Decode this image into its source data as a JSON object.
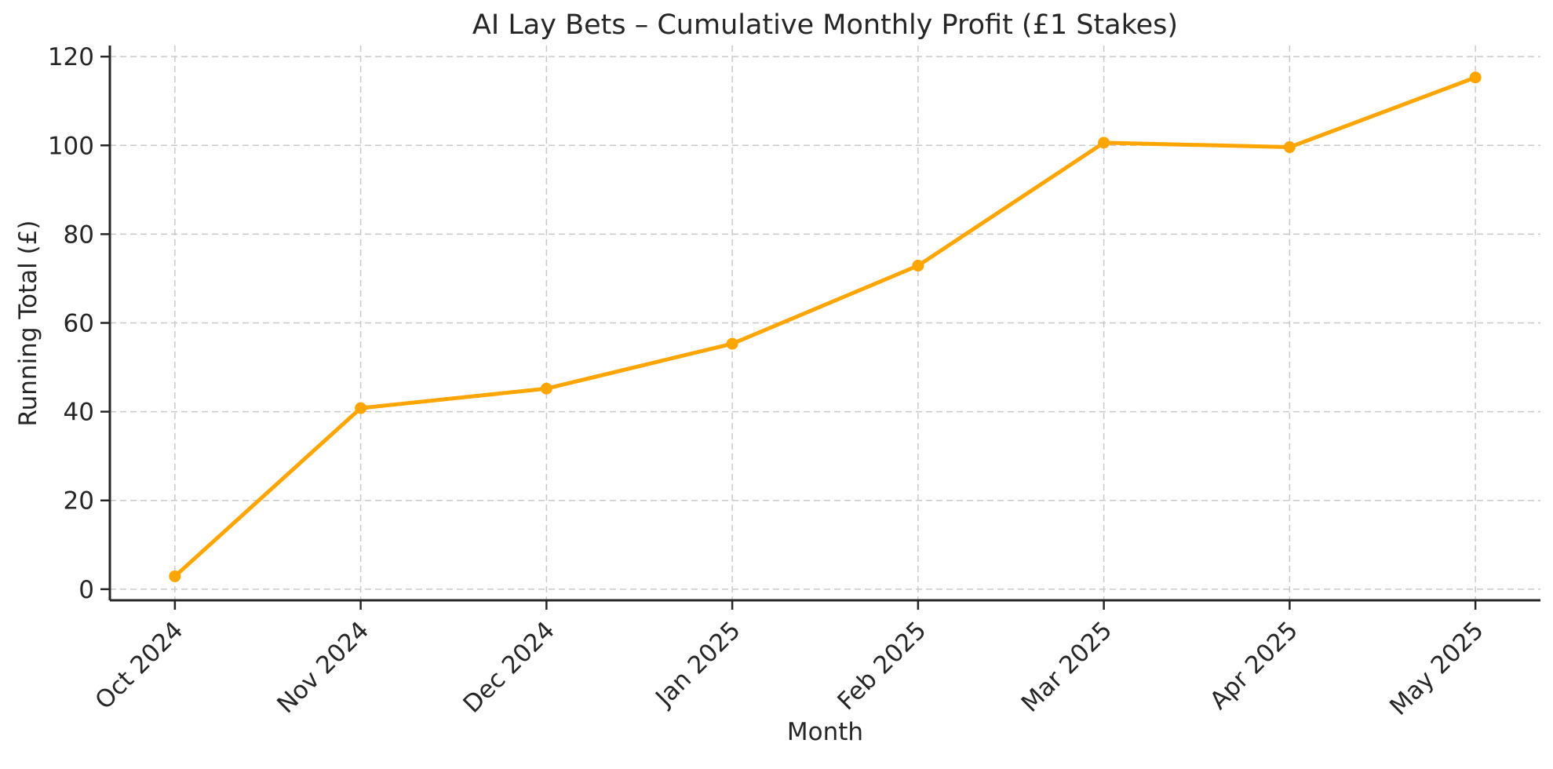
{
  "chart_data": {
    "type": "line",
    "title": "AI Lay Bets – Cumulative Monthly Profit (£1 Stakes)",
    "xlabel": "Month",
    "ylabel": "Running Total (£)",
    "categories": [
      "Oct 2024",
      "Nov 2024",
      "Dec 2024",
      "Jan 2025",
      "Feb 2025",
      "Mar 2025",
      "Apr 2025",
      "May 2025"
    ],
    "series": [
      {
        "name": "Running Total",
        "values": [
          2.9,
          40.8,
          45.2,
          55.3,
          72.9,
          100.6,
          99.6,
          115.3
        ]
      }
    ],
    "yticks": [
      0,
      20,
      40,
      60,
      80,
      100,
      120
    ],
    "ylim": [
      -2.5,
      122.5
    ],
    "xlim": [
      -0.35,
      7.35
    ],
    "grid": "on",
    "grid_style": "dashed",
    "legend": "none",
    "x_tick_rotation": 45,
    "colors": {
      "line": "#FFA500",
      "marker": "#FFA500",
      "grid": "#c9c9c9",
      "axis": "#262626",
      "text": "#262626",
      "background": "#ffffff"
    }
  }
}
